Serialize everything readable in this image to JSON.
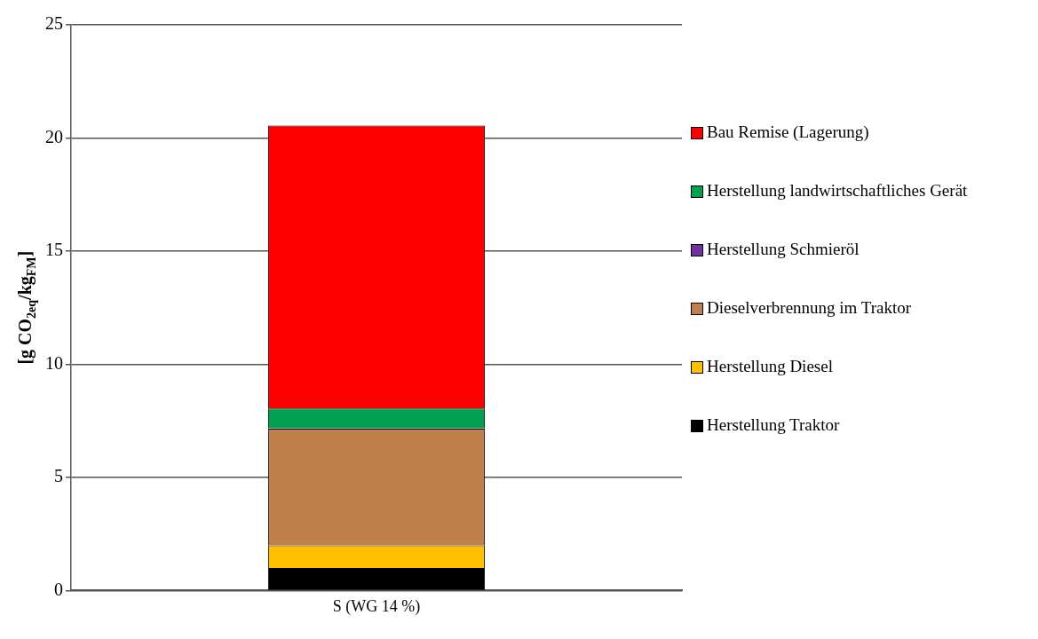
{
  "chart_data": {
    "type": "bar",
    "stacked": true,
    "ylabel": "[g CO$_{2eq}$/kg$_{FM}$]",
    "categories": [
      "S (WG 14 %)"
    ],
    "series": [
      {
        "name": "Herstellung Traktor",
        "color": "#000000",
        "values": [
          1.0
        ]
      },
      {
        "name": "Herstellung Diesel",
        "color": "#ffc000",
        "values": [
          1.0
        ]
      },
      {
        "name": "Dieselverbrennung im Traktor",
        "color": "#c0804c",
        "values": [
          5.15
        ]
      },
      {
        "name": "Herstellung Schmieröl",
        "color": "#7030a0",
        "values": [
          0.02
        ]
      },
      {
        "name": "Herstellung landwirtschaftliches Gerät",
        "color": "#00a050",
        "values": [
          0.88
        ]
      },
      {
        "name": "Bau Remise (Lagerung)",
        "color": "#ff0000",
        "values": [
          12.5
        ]
      }
    ],
    "ylim": [
      0,
      25
    ],
    "yticks": [
      0,
      5,
      10,
      15,
      20,
      25
    ],
    "grid": "y",
    "legend": "right"
  }
}
